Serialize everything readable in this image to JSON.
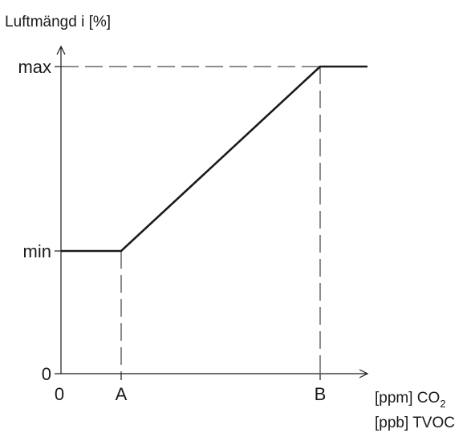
{
  "diagram": {
    "y_axis_title": "Luftmängd i [%]",
    "y_ticks": {
      "max": "max",
      "min": "min",
      "zero": "0"
    },
    "x_ticks": {
      "zero": "0",
      "a": "A",
      "b": "B"
    },
    "x_unit_line1_prefix": "[ppm] CO",
    "x_unit_line1_sub": "2",
    "x_unit_line2": "[ppb] TVOC"
  },
  "colors": {
    "line": "#1a1a1a",
    "background": "#ffffff"
  }
}
